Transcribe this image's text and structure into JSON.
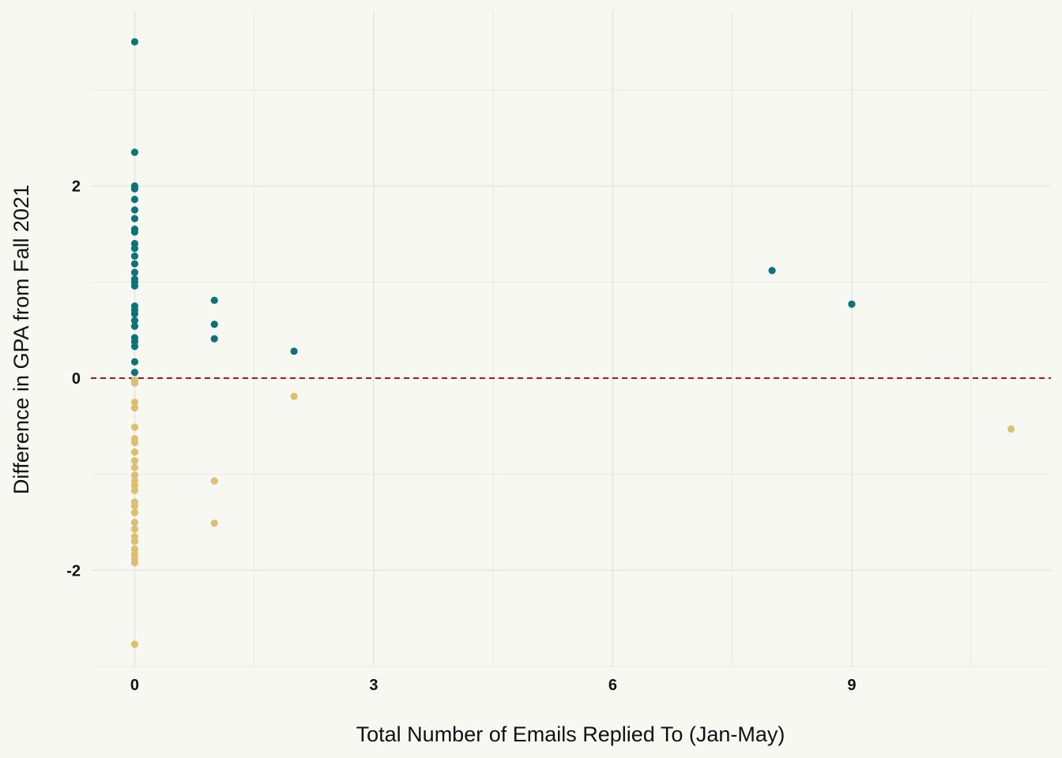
{
  "chart_data": {
    "type": "scatter",
    "title": "",
    "xlabel": "Total Number of Emails Replied To (Jan-May)",
    "ylabel": "Difference in GPA from Fall 2021",
    "xlim": [
      -0.55,
      11.5
    ],
    "ylim": [
      -3.0,
      3.82
    ],
    "x_ticks": [
      0,
      3,
      6,
      9
    ],
    "x_tick_labels": [
      "0",
      "3",
      "6",
      "9"
    ],
    "x_minor_gridlines": [
      1.5,
      4.5,
      7.5,
      10.5
    ],
    "y_ticks": [
      -2,
      0,
      2
    ],
    "y_tick_labels": [
      "-2",
      "0",
      "2"
    ],
    "y_minor_gridlines": [
      -3,
      -1,
      1,
      3
    ],
    "grid": true,
    "reference_line": {
      "y": 0,
      "style": "dashed",
      "color": "#8b1a1a"
    },
    "colors": {
      "positive": "#0d7377",
      "negative": "#dcbf71",
      "background": "#f8f8f3",
      "grid": "#e8e8e4"
    },
    "series": [
      {
        "color_key": "positive",
        "points": [
          [
            0,
            3.5
          ],
          [
            0,
            2.35
          ],
          [
            0,
            2.0
          ],
          [
            0,
            1.97
          ],
          [
            0,
            1.86
          ],
          [
            0,
            1.75
          ],
          [
            0,
            1.66
          ],
          [
            0,
            1.55
          ],
          [
            0,
            1.52
          ],
          [
            0,
            1.4
          ],
          [
            0,
            1.35
          ],
          [
            0,
            1.27
          ],
          [
            0,
            1.19
          ],
          [
            0,
            1.1
          ],
          [
            0,
            1.03
          ],
          [
            0,
            1.0
          ],
          [
            0,
            0.96
          ],
          [
            0,
            0.75
          ],
          [
            0,
            0.71
          ],
          [
            0,
            0.67
          ],
          [
            0,
            0.6
          ],
          [
            0,
            0.54
          ],
          [
            0,
            0.42
          ],
          [
            0,
            0.38
          ],
          [
            0,
            0.33
          ],
          [
            0,
            0.17
          ],
          [
            0,
            0.06
          ],
          [
            1,
            0.81
          ],
          [
            1,
            0.56
          ],
          [
            1,
            0.41
          ],
          [
            2,
            0.28
          ],
          [
            8,
            1.12
          ],
          [
            9,
            0.77
          ]
        ]
      },
      {
        "color_key": "negative",
        "points": [
          [
            0,
            -0.02
          ],
          [
            0,
            -0.05
          ],
          [
            0,
            -0.25
          ],
          [
            0,
            -0.31
          ],
          [
            0,
            -0.51
          ],
          [
            0,
            -0.63
          ],
          [
            0,
            -0.67
          ],
          [
            0,
            -0.77
          ],
          [
            0,
            -0.86
          ],
          [
            0,
            -0.93
          ],
          [
            0,
            -1.01
          ],
          [
            0,
            -1.07
          ],
          [
            0,
            -1.12
          ],
          [
            0,
            -1.17
          ],
          [
            0,
            -1.29
          ],
          [
            0,
            -1.33
          ],
          [
            0,
            -1.4
          ],
          [
            0,
            -1.5
          ],
          [
            0,
            -1.57
          ],
          [
            0,
            -1.65
          ],
          [
            0,
            -1.7
          ],
          [
            0,
            -1.78
          ],
          [
            0,
            -1.83
          ],
          [
            0,
            -1.88
          ],
          [
            0,
            -1.92
          ],
          [
            0,
            -2.77
          ],
          [
            1,
            -1.07
          ],
          [
            1,
            -1.51
          ],
          [
            2,
            -0.19
          ],
          [
            11,
            -0.53
          ]
        ]
      }
    ]
  }
}
